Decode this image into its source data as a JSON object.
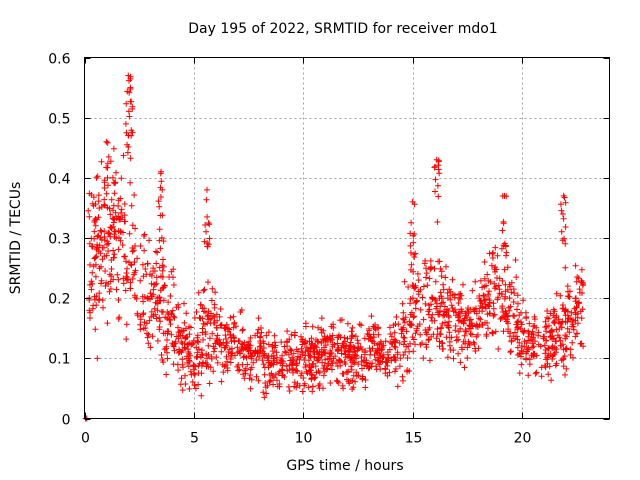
{
  "chart_data": {
    "type": "scatter",
    "title": "Day 195 of 2022, SRMTID for receiver mdo1",
    "xlabel": "GPS time / hours",
    "ylabel": "SRMTID / TECUs",
    "xlim": [
      0,
      24
    ],
    "ylim": [
      0,
      0.6
    ],
    "x_ticks": [
      0,
      5,
      10,
      15,
      20
    ],
    "x_tick_labels": [
      "0",
      "5",
      "10",
      "15",
      "20"
    ],
    "y_ticks": [
      0,
      0.1,
      0.2,
      0.3,
      0.4,
      0.5,
      0.6
    ],
    "y_tick_labels": [
      "0",
      "0.1",
      "0.2",
      "0.3",
      "0.4",
      "0.5",
      "0.6"
    ],
    "grid": true,
    "marker": "plus",
    "color": "#ff0000",
    "profile": {
      "description": "Dense scatter of SRMTID values; hour -> typical value",
      "x": [
        0.0,
        0.5,
        1.0,
        1.5,
        2.0,
        2.5,
        3.0,
        3.5,
        4.0,
        4.5,
        5.0,
        5.5,
        6.0,
        6.5,
        7.0,
        7.5,
        8.0,
        8.5,
        9.0,
        9.5,
        10.0,
        10.5,
        11.0,
        11.5,
        12.0,
        12.5,
        13.0,
        13.5,
        14.0,
        14.5,
        15.0,
        15.5,
        16.0,
        16.5,
        17.0,
        17.5,
        18.0,
        18.5,
        19.0,
        19.5,
        20.0,
        20.5,
        21.0,
        21.5,
        22.0,
        22.5,
        22.8
      ],
      "y": [
        0.22,
        0.26,
        0.28,
        0.29,
        0.3,
        0.22,
        0.2,
        0.19,
        0.16,
        0.12,
        0.1,
        0.16,
        0.14,
        0.12,
        0.12,
        0.11,
        0.11,
        0.09,
        0.09,
        0.1,
        0.1,
        0.1,
        0.11,
        0.11,
        0.11,
        0.1,
        0.11,
        0.12,
        0.11,
        0.13,
        0.18,
        0.19,
        0.2,
        0.17,
        0.16,
        0.15,
        0.18,
        0.2,
        0.21,
        0.18,
        0.14,
        0.12,
        0.12,
        0.13,
        0.15,
        0.18,
        0.19
      ],
      "spread": [
        0.07,
        0.08,
        0.08,
        0.08,
        0.09,
        0.07,
        0.06,
        0.06,
        0.05,
        0.04,
        0.04,
        0.06,
        0.04,
        0.03,
        0.03,
        0.03,
        0.03,
        0.03,
        0.03,
        0.03,
        0.03,
        0.03,
        0.03,
        0.03,
        0.03,
        0.03,
        0.03,
        0.03,
        0.03,
        0.04,
        0.05,
        0.05,
        0.06,
        0.05,
        0.04,
        0.04,
        0.04,
        0.05,
        0.05,
        0.05,
        0.04,
        0.03,
        0.03,
        0.04,
        0.04,
        0.04,
        0.04
      ]
    },
    "peaks": [
      {
        "x": 0.55,
        "y": 0.4
      },
      {
        "x": 1.0,
        "y": 0.46
      },
      {
        "x": 1.3,
        "y": 0.4
      },
      {
        "x": 2.0,
        "y": 0.57
      },
      {
        "x": 2.1,
        "y": 0.55
      },
      {
        "x": 3.5,
        "y": 0.41
      },
      {
        "x": 5.6,
        "y": 0.38
      },
      {
        "x": 15.0,
        "y": 0.36
      },
      {
        "x": 16.1,
        "y": 0.43
      },
      {
        "x": 19.2,
        "y": 0.37
      },
      {
        "x": 21.9,
        "y": 0.37
      }
    ],
    "point_count": 1800
  }
}
